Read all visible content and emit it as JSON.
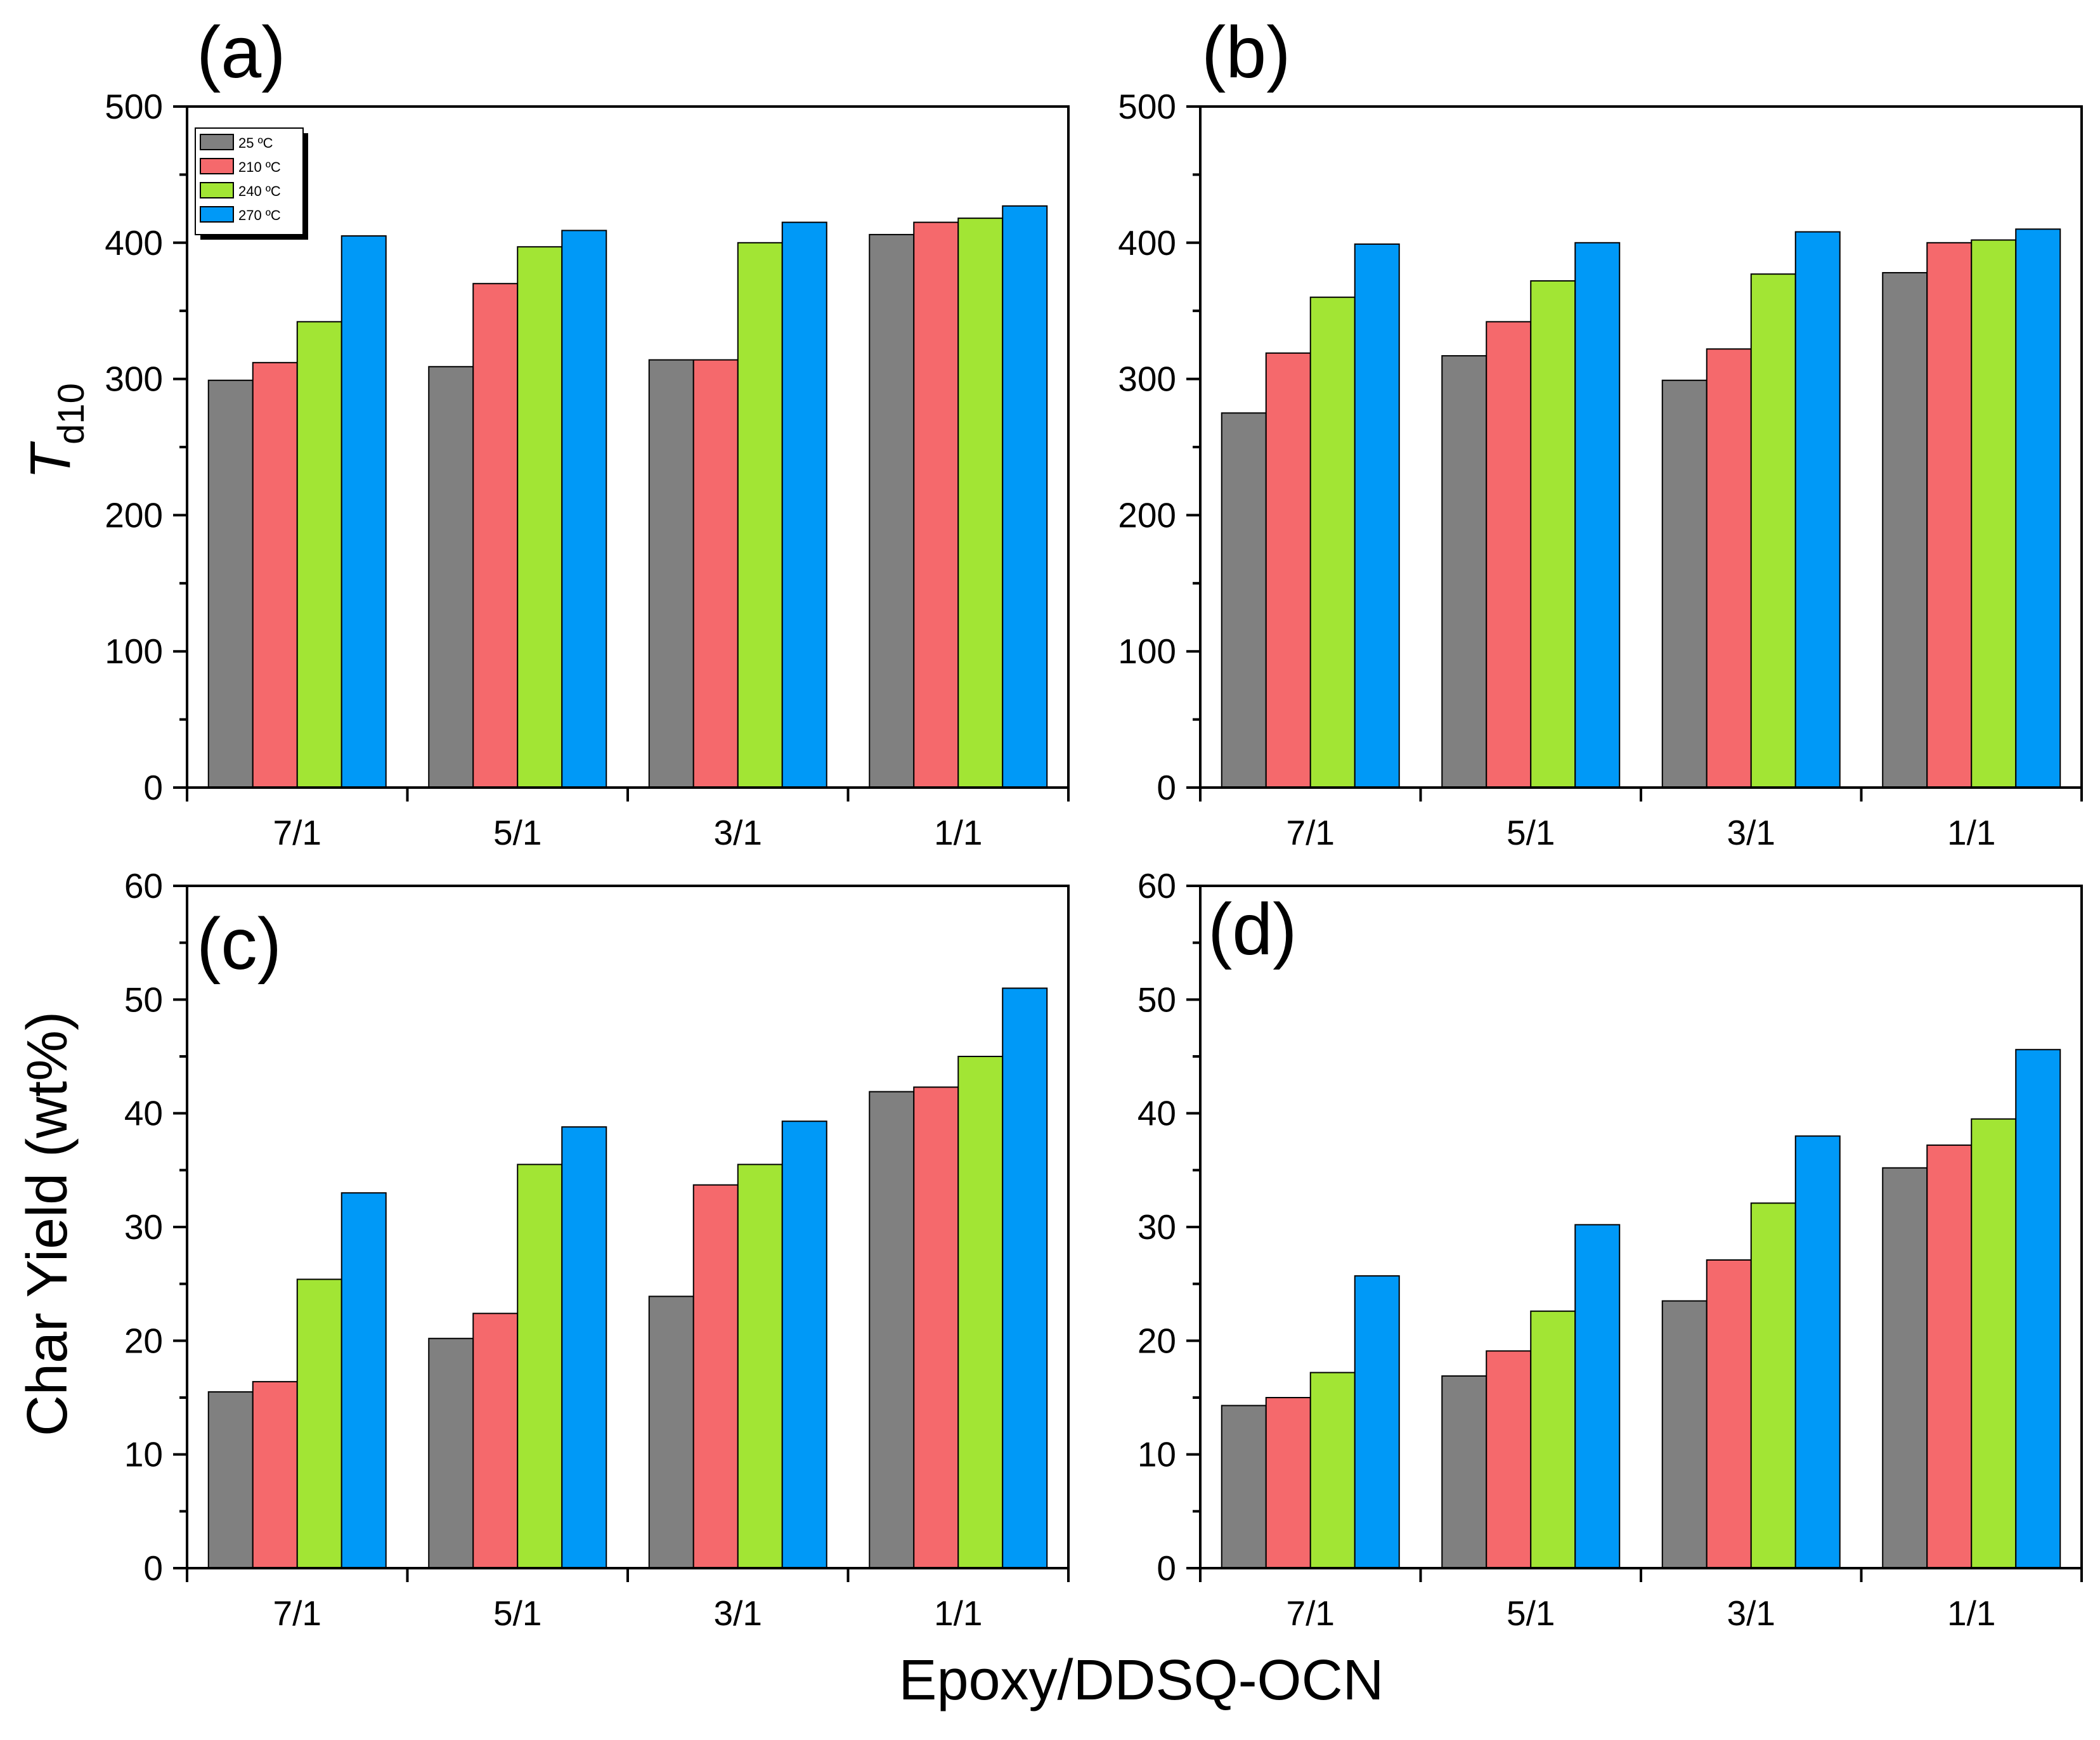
{
  "figure": {
    "y_title_top": "T",
    "y_title_top_sub": "d10",
    "y_title_bottom": "Char Yield (wt%)",
    "x_title": "Epoxy/DDSQ-OCN"
  },
  "legend": {
    "placement": "top-left of panel (a)",
    "entries": [
      "25 ºC",
      "210 ºC",
      "240 ºC",
      "270 ºC"
    ]
  },
  "colors": {
    "series": [
      "#808080",
      "#f5696c",
      "#a2e534",
      "#0099f7"
    ],
    "bar_stroke": "#000000"
  },
  "chart_data": [
    {
      "type": "bar",
      "panel_label": "(a)",
      "categories": [
        "7/1",
        "5/1",
        "3/1",
        "1/1"
      ],
      "ylim": [
        0,
        500
      ],
      "yticks": [
        0,
        100,
        200,
        300,
        400,
        500
      ],
      "series": [
        {
          "name": "25 ºC",
          "values": [
            299,
            309,
            314,
            406
          ]
        },
        {
          "name": "210 ºC",
          "values": [
            312,
            370,
            314,
            415
          ]
        },
        {
          "name": "240 ºC",
          "values": [
            342,
            397,
            400,
            418
          ]
        },
        {
          "name": "270 ºC",
          "values": [
            405,
            409,
            415,
            427
          ]
        }
      ]
    },
    {
      "type": "bar",
      "panel_label": "(b)",
      "categories": [
        "7/1",
        "5/1",
        "3/1",
        "1/1"
      ],
      "ylim": [
        0,
        500
      ],
      "yticks": [
        0,
        100,
        200,
        300,
        400,
        500
      ],
      "series": [
        {
          "name": "25 ºC",
          "values": [
            275,
            317,
            299,
            378
          ]
        },
        {
          "name": "210 ºC",
          "values": [
            319,
            342,
            322,
            400
          ]
        },
        {
          "name": "240 ºC",
          "values": [
            360,
            372,
            377,
            402
          ]
        },
        {
          "name": "270 ºC",
          "values": [
            399,
            400,
            408,
            410
          ]
        }
      ]
    },
    {
      "type": "bar",
      "panel_label": "(c)",
      "categories": [
        "7/1",
        "5/1",
        "3/1",
        "1/1"
      ],
      "ylim": [
        0,
        60
      ],
      "yticks": [
        0,
        10,
        20,
        30,
        40,
        50,
        60
      ],
      "series": [
        {
          "name": "25 ºC",
          "values": [
            15.5,
            20.2,
            23.9,
            41.9
          ]
        },
        {
          "name": "210 ºC",
          "values": [
            16.4,
            22.4,
            33.7,
            42.3
          ]
        },
        {
          "name": "240 ºC",
          "values": [
            25.4,
            35.5,
            35.5,
            45.0
          ]
        },
        {
          "name": "270 ºC",
          "values": [
            33.0,
            38.8,
            39.3,
            51.0
          ]
        }
      ]
    },
    {
      "type": "bar",
      "panel_label": "(d)",
      "categories": [
        "7/1",
        "5/1",
        "3/1",
        "1/1"
      ],
      "ylim": [
        0,
        60
      ],
      "yticks": [
        0,
        10,
        20,
        30,
        40,
        50,
        60
      ],
      "series": [
        {
          "name": "25 ºC",
          "values": [
            14.3,
            16.9,
            23.5,
            35.2
          ]
        },
        {
          "name": "210 ºC",
          "values": [
            15.0,
            19.1,
            27.1,
            37.2
          ]
        },
        {
          "name": "240 ºC",
          "values": [
            17.2,
            22.6,
            32.1,
            39.5
          ]
        },
        {
          "name": "270 ºC",
          "values": [
            25.7,
            30.2,
            38.0,
            45.6
          ]
        }
      ]
    }
  ]
}
